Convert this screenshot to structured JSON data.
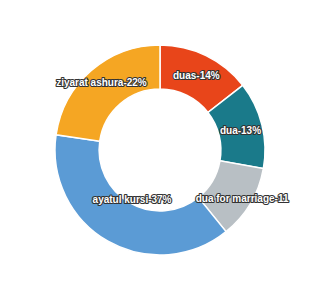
{
  "chart_data": {
    "type": "pie",
    "values": [
      14,
      13,
      11,
      37,
      22
    ],
    "value_labels": [
      "duas-14%",
      "dua-13%",
      "dua for marriage-11",
      "ayatul kursi-37%",
      "ziyarat ashura-22%"
    ],
    "colors": [
      "#e8451a",
      "#1a7a8a",
      "#b8bfc4",
      "#5b9bd5",
      "#f5a623"
    ],
    "data_labels": true
  }
}
